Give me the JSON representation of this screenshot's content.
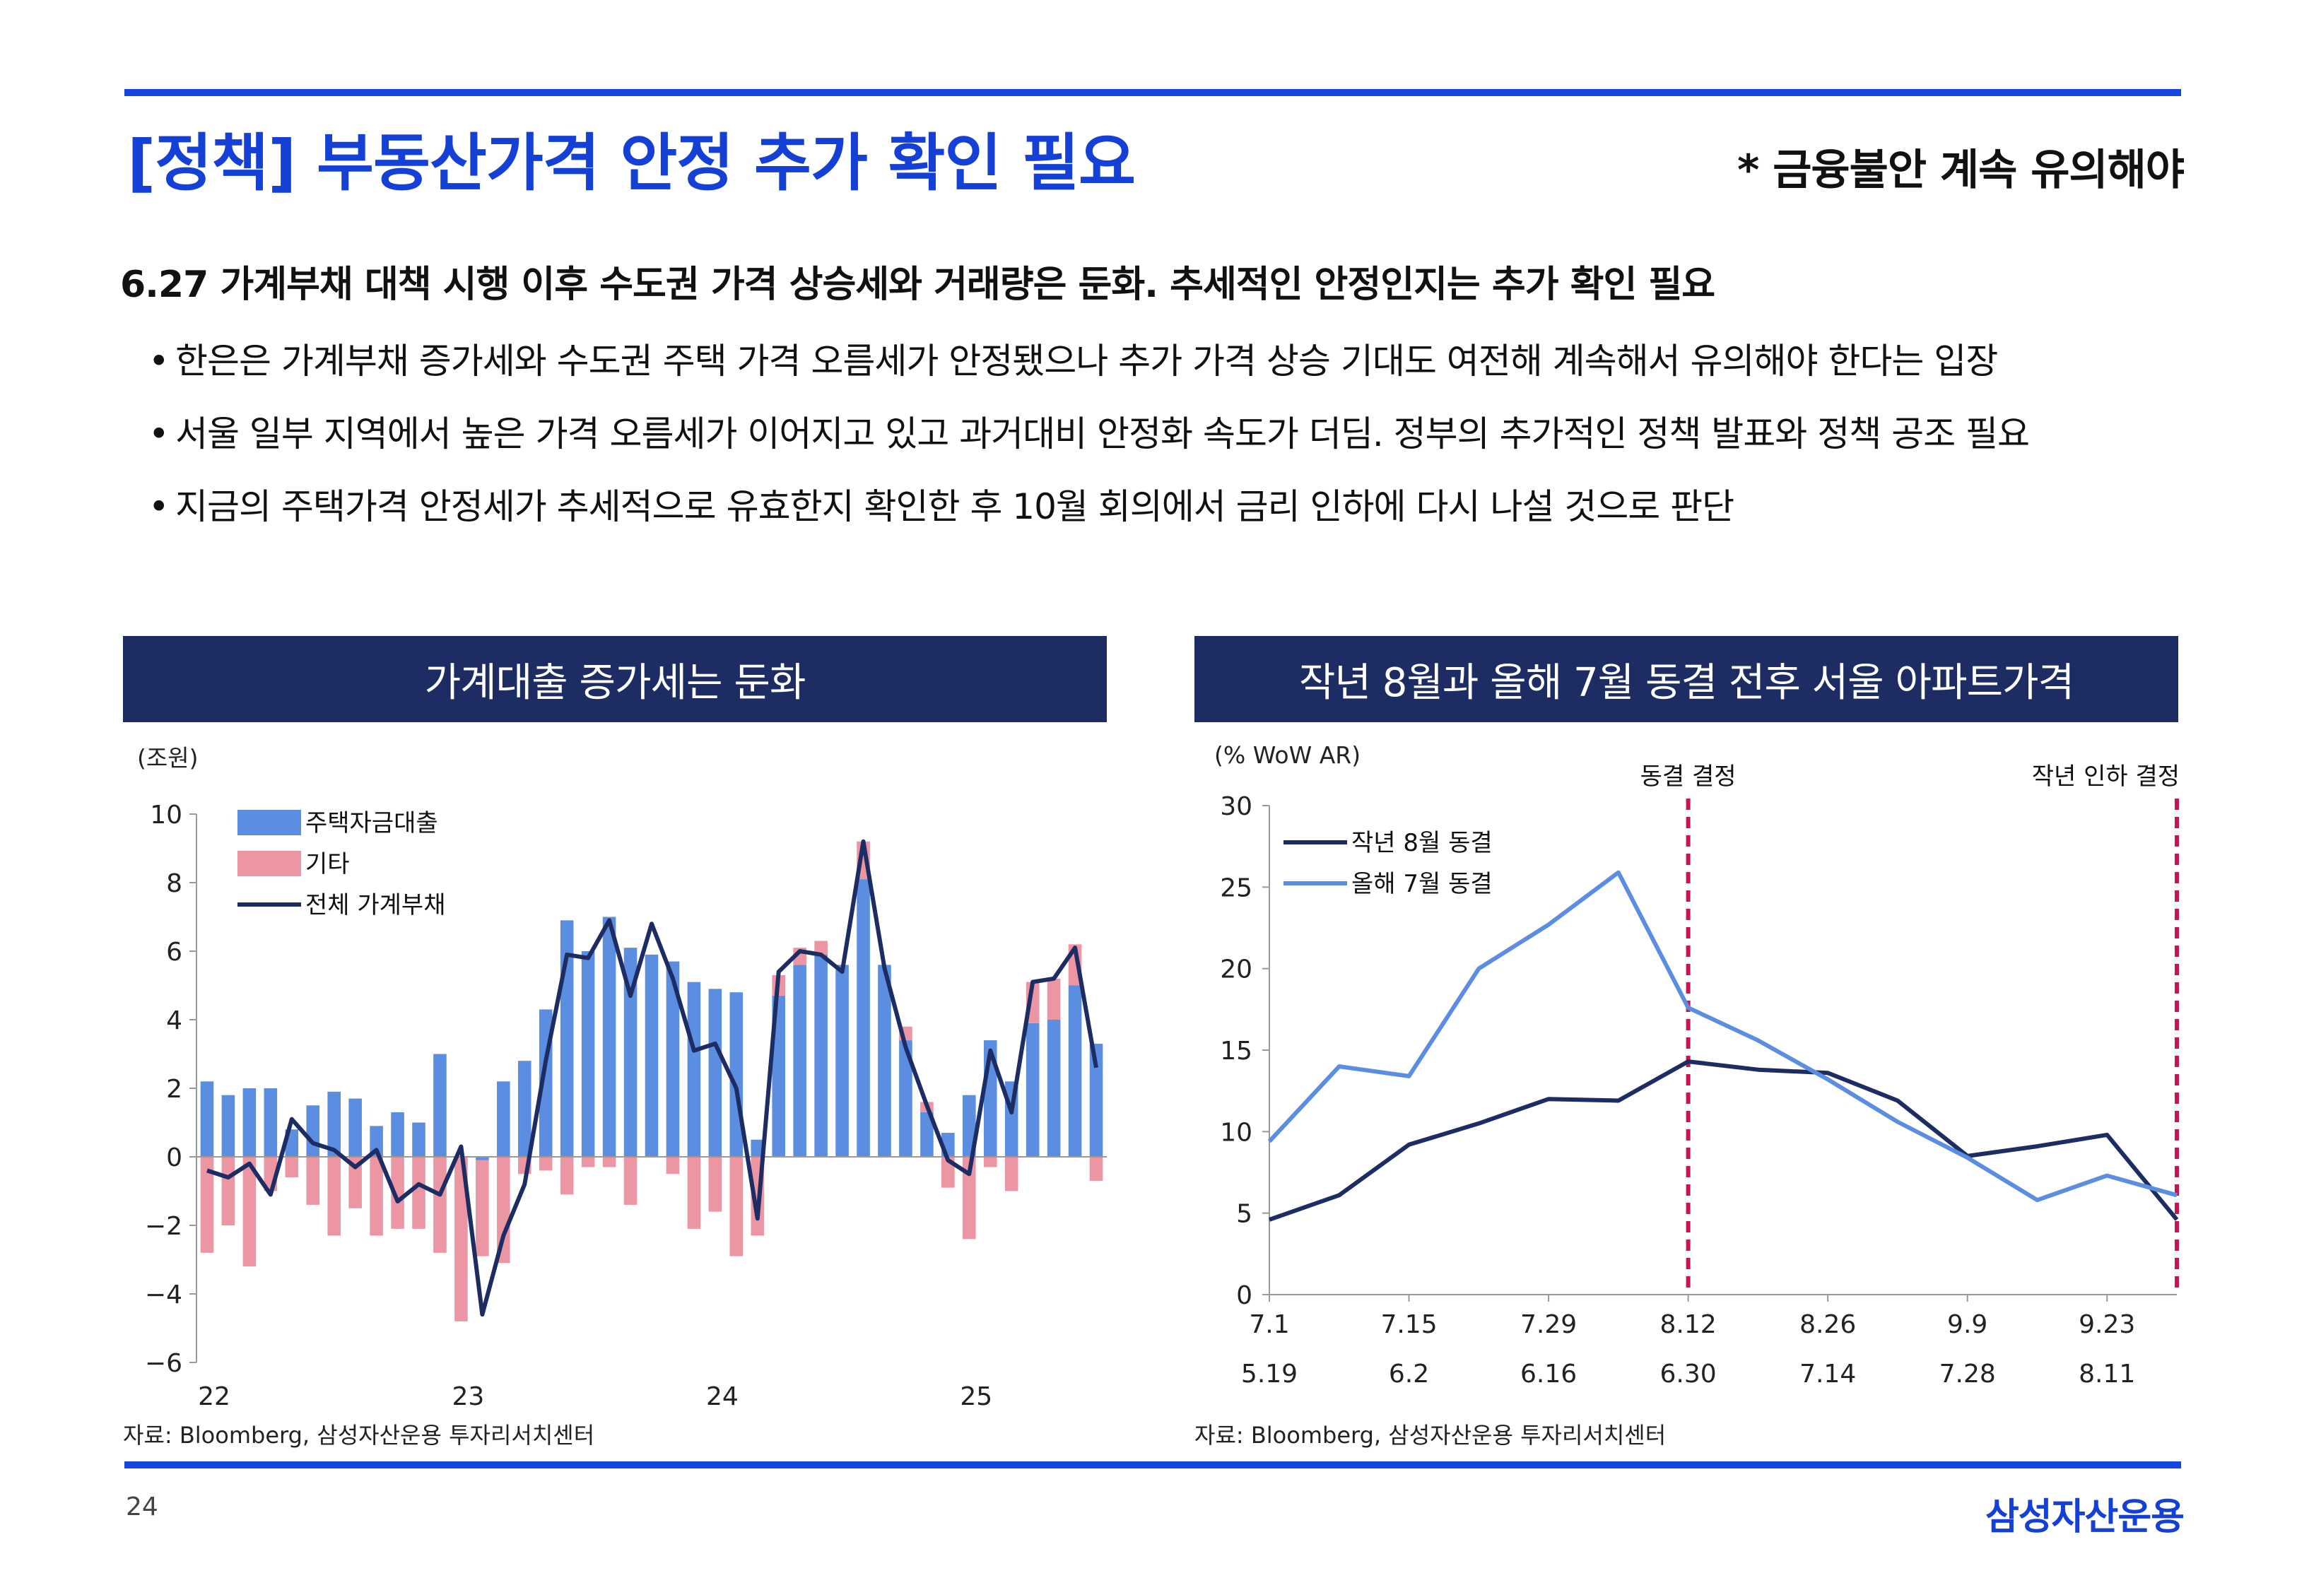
{
  "page": {
    "title": "[정책] 부동산가격 안정 추가 확인 필요",
    "subnote": "* 금융불안 계속 유의해야",
    "headline": "6.27 가계부채 대책 시행 이후 수도권 가격 상승세와 거래량은 둔화. 추세적인 안정인지는 추가 확인 필요",
    "bullet_symbol": "•",
    "bullets": [
      "한은은 가계부채 증가세와 수도권 주택 가격 오름세가 안정됐으나 추가 가격 상승 기대도 여전해 계속해서 유의해야 한다는 입장",
      "서울 일부 지역에서 높은 가격 오름세가 이어지고 있고 과거대비 안정화 속도가 더딤. 정부의 추가적인 정책 발표와 정책 공조 필요",
      "지금의 주택가격 안정세가 추세적으로 유효한지 확인한 후 10월 회의에서 금리 인하에 다시 나설 것으로 판단"
    ],
    "page_number": "24",
    "brand": "삼성자산운용"
  },
  "colors": {
    "accent": "#1440d6",
    "panel_header": "#1d2d63",
    "bar_blue": "#5b8ee0",
    "bar_pink": "#ec95a3",
    "line_navy": "#1d2d63",
    "line_light": "#5b8ee0",
    "marker": "#c8144f"
  },
  "chart_data": [
    {
      "type": "bar",
      "title": "가계대출 증가세는 둔화",
      "ylabel": "(조원)",
      "ylim": [
        -6,
        10
      ],
      "yticks": [
        10,
        8,
        6,
        4,
        2,
        0,
        -2,
        -4,
        -6
      ],
      "ytick_labels": [
        "10",
        "8",
        "6",
        "4",
        "2",
        "0",
        "−2",
        "−4",
        "−6"
      ],
      "x_labels": [
        {
          "label": "22",
          "index": 0
        },
        {
          "label": "23",
          "index": 12
        },
        {
          "label": "24",
          "index": 24
        },
        {
          "label": "25",
          "index": 36
        }
      ],
      "legend": [
        "주택자금대출",
        "기타",
        "전체 가계부채"
      ],
      "series": [
        {
          "name": "주택자금대출",
          "kind": "bar",
          "values": [
            2.2,
            1.8,
            2.0,
            2.0,
            0.8,
            1.5,
            1.9,
            1.7,
            0.9,
            1.3,
            1.0,
            3.0,
            0.0,
            -0.1,
            2.2,
            2.8,
            4.3,
            6.9,
            6.0,
            7.0,
            6.1,
            5.9,
            5.7,
            5.1,
            4.9,
            4.8,
            0.5,
            4.7,
            5.6,
            5.9,
            5.6,
            8.1,
            5.6,
            3.4,
            1.3,
            0.7,
            1.8,
            3.4,
            2.2,
            3.9,
            4.0,
            5.0,
            3.3
          ]
        },
        {
          "name": "기타",
          "kind": "bar",
          "values": [
            -2.8,
            -2.0,
            -3.2,
            -1.0,
            -0.6,
            -1.4,
            -2.3,
            -1.5,
            -2.3,
            -2.1,
            -2.1,
            -2.8,
            -4.8,
            -2.8,
            -3.1,
            -0.5,
            -0.4,
            -1.1,
            -0.3,
            -0.3,
            -1.4,
            0.0,
            -0.5,
            -2.1,
            -1.6,
            -2.9,
            -2.3,
            0.6,
            0.5,
            0.4,
            0.0,
            1.1,
            0.0,
            0.4,
            0.3,
            -0.9,
            -2.4,
            -0.3,
            -1.0,
            1.2,
            1.2,
            1.2,
            -0.7
          ]
        },
        {
          "name": "전체 가계부채",
          "kind": "line",
          "values": [
            -0.4,
            -0.6,
            -0.2,
            -1.1,
            1.1,
            0.4,
            0.2,
            -0.3,
            0.2,
            -1.3,
            -0.8,
            -1.1,
            0.3,
            -4.6,
            -2.3,
            -0.8,
            2.8,
            5.9,
            5.8,
            6.9,
            4.7,
            6.8,
            5.2,
            3.1,
            3.3,
            2.0,
            -1.8,
            5.4,
            6.0,
            5.9,
            5.4,
            9.2,
            5.5,
            3.2,
            1.5,
            -0.1,
            -0.5,
            3.1,
            1.3,
            5.1,
            5.2,
            6.1,
            2.6
          ]
        }
      ],
      "source": "자료: Bloomberg, 삼성자산운용 투자리서치센터"
    },
    {
      "type": "line",
      "title": "작년 8월과 올해 7월 동결 전후 서울 아파트가격",
      "ylabel": "(% WoW AR)",
      "ylim": [
        0,
        30
      ],
      "yticks": [
        30,
        25,
        20,
        15,
        10,
        5,
        0
      ],
      "x_top_labels": [
        "7.1",
        "7.15",
        "7.29",
        "8.12",
        "8.26",
        "9.9",
        "9.23"
      ],
      "x_bottom_labels": [
        "5.19",
        "6.2",
        "6.16",
        "6.30",
        "7.14",
        "7.28",
        "8.11"
      ],
      "x_label_indices": [
        0,
        2,
        4,
        6,
        8,
        10,
        12
      ],
      "series": [
        {
          "name": "작년 8월 동결",
          "values": [
            4.6,
            6.1,
            9.2,
            10.5,
            12.0,
            11.9,
            14.3,
            13.8,
            13.6,
            11.9,
            8.5,
            9.1,
            9.8,
            4.6
          ]
        },
        {
          "name": "올해 7월 동결",
          "values": [
            9.4,
            14.0,
            13.4,
            20.0,
            22.7,
            25.9,
            17.6,
            15.6,
            13.2,
            10.6,
            8.4,
            5.8,
            7.3,
            6.1
          ]
        }
      ],
      "markers": [
        {
          "label": "동결 결정",
          "index": 6
        },
        {
          "label": "작년 인하 결정",
          "index": 13
        }
      ],
      "source": "자료: Bloomberg, 삼성자산운용 투자리서치센터"
    }
  ]
}
